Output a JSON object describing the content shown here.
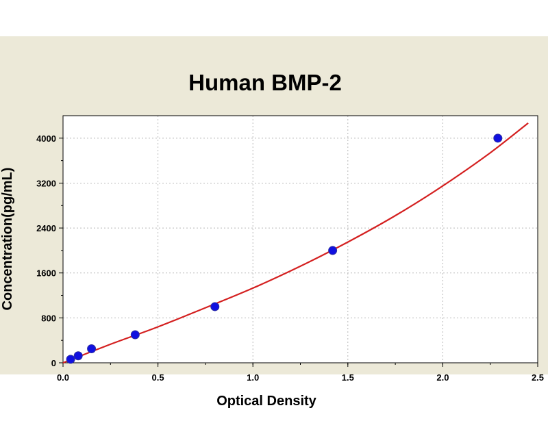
{
  "chart_data": {
    "type": "scatter",
    "title": "Human BMP-2",
    "xlabel": "Optical Density",
    "ylabel": "Concentration(pg/mL)",
    "xlim": [
      0,
      2.5
    ],
    "ylim": [
      0,
      4400
    ],
    "x_ticks": [
      0.0,
      0.5,
      1.0,
      1.5,
      2.0,
      2.5
    ],
    "x_tick_labels": [
      "0.0",
      "0.5",
      "1.0",
      "1.5",
      "2.0",
      "2.5"
    ],
    "y_ticks": [
      0,
      800,
      1600,
      2400,
      3200,
      4000
    ],
    "y_tick_labels": [
      "0",
      "800",
      "1600",
      "2400",
      "3200",
      "4000"
    ],
    "grid": true,
    "series": [
      {
        "kind": "points",
        "color": "#1010e0",
        "x": [
          0.04,
          0.08,
          0.15,
          0.38,
          0.8,
          1.42,
          2.29
        ],
        "y": [
          62.5,
          125,
          250,
          500,
          1000,
          2000,
          4000
        ]
      },
      {
        "kind": "fit-curve",
        "color": "#d42020",
        "x": [
          0.0,
          0.25,
          0.5,
          0.75,
          1.0,
          1.25,
          1.5,
          1.75,
          2.0,
          2.25,
          2.45
        ],
        "y": [
          0,
          330,
          640,
          980,
          1330,
          1720,
          2150,
          2620,
          3150,
          3740,
          4270
        ]
      }
    ]
  }
}
